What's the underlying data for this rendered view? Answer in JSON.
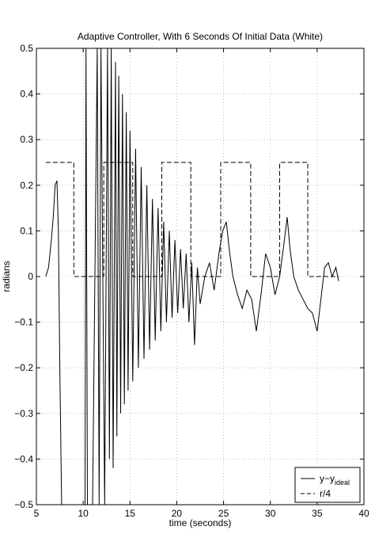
{
  "chart_data": {
    "type": "line",
    "title": "Adaptive Controller, With 6 Seconds Of Initial Data (White)",
    "xlabel": "time (seconds)",
    "ylabel": "radians",
    "xlim": [
      5,
      40
    ],
    "ylim": [
      -0.5,
      0.5
    ],
    "xticks": [
      5,
      10,
      15,
      20,
      25,
      30,
      35,
      40
    ],
    "xtick_labels": [
      "5",
      "10",
      "15",
      "20",
      "25",
      "30",
      "35",
      "40"
    ],
    "yticks": [
      -0.5,
      -0.4,
      -0.3,
      -0.2,
      -0.1,
      0,
      0.1,
      0.2,
      0.3,
      0.4,
      0.5
    ],
    "ytick_labels": [
      "−0.5",
      "−0.4",
      "−0.3",
      "−0.2",
      "−0.1",
      "0",
      "0.1",
      "0.2",
      "0.3",
      "0.4",
      "0.5"
    ],
    "grid": true,
    "legend": {
      "placement": "bottom-right"
    },
    "series": [
      {
        "name": "y−y",
        "name_sub": "ideal",
        "style": "solid",
        "color": "#000000",
        "x": [
          6.0,
          6.3,
          6.6,
          6.8,
          7.0,
          7.2,
          7.35,
          7.5,
          7.7,
          8.0,
          10.2,
          10.3,
          10.45,
          11.0,
          11.5,
          11.7,
          11.9,
          12.3,
          12.6,
          12.8,
          13.0,
          13.2,
          13.45,
          13.6,
          13.8,
          14.0,
          14.2,
          14.4,
          14.6,
          14.8,
          15.0,
          15.3,
          15.6,
          15.9,
          16.2,
          16.5,
          16.8,
          17.1,
          17.4,
          17.7,
          18.0,
          18.3,
          18.6,
          18.9,
          19.2,
          19.5,
          19.8,
          20.1,
          20.4,
          20.7,
          21.0,
          21.3,
          21.6,
          21.9,
          22.2,
          22.5,
          23.0,
          23.5,
          24.0,
          24.5,
          24.9,
          25.3,
          25.6,
          26.0,
          26.5,
          27.0,
          27.5,
          28.0,
          28.5,
          29.0,
          29.5,
          30.0,
          30.5,
          31.0,
          31.5,
          31.8,
          32.1,
          32.5,
          33.0,
          33.5,
          34.0,
          34.5,
          35.0,
          35.4,
          35.8,
          36.2,
          36.6,
          37.0,
          37.3
        ],
        "y": [
          0.0,
          0.02,
          0.08,
          0.13,
          0.2,
          0.21,
          0.1,
          -0.2,
          -0.5,
          -0.5,
          -0.5,
          0.5,
          -0.5,
          -0.5,
          0.5,
          -0.5,
          0.5,
          -0.5,
          0.5,
          -0.4,
          0.5,
          -0.42,
          0.47,
          -0.35,
          0.44,
          -0.3,
          0.4,
          -0.28,
          0.36,
          -0.25,
          0.32,
          -0.23,
          0.28,
          -0.2,
          0.24,
          -0.18,
          0.2,
          -0.16,
          0.17,
          -0.14,
          0.15,
          -0.12,
          0.12,
          -0.1,
          0.1,
          -0.09,
          0.08,
          -0.08,
          0.06,
          -0.07,
          0.05,
          -0.1,
          0.03,
          -0.15,
          0.02,
          -0.06,
          0.0,
          0.03,
          -0.03,
          0.05,
          0.1,
          0.12,
          0.06,
          0.0,
          -0.04,
          -0.07,
          -0.03,
          -0.05,
          -0.12,
          -0.04,
          0.05,
          0.02,
          -0.04,
          0.0,
          0.08,
          0.13,
          0.06,
          0.0,
          -0.03,
          -0.05,
          -0.07,
          -0.08,
          -0.12,
          -0.05,
          0.02,
          0.03,
          0.0,
          0.02,
          -0.01
        ]
      },
      {
        "name": "r/4",
        "style": "dashed",
        "color": "#000000",
        "x": [
          6.0,
          9.0,
          9.0,
          12.2,
          12.2,
          15.3,
          15.3,
          18.4,
          18.4,
          21.5,
          21.5,
          24.7,
          24.7,
          27.9,
          27.9,
          31.0,
          31.0,
          34.0,
          34.0,
          37.3
        ],
        "y": [
          0.25,
          0.25,
          0,
          0,
          0.25,
          0.25,
          0,
          0,
          0.25,
          0.25,
          0,
          0,
          0.25,
          0.25,
          0,
          0,
          0.25,
          0.25,
          0,
          0
        ]
      }
    ]
  }
}
